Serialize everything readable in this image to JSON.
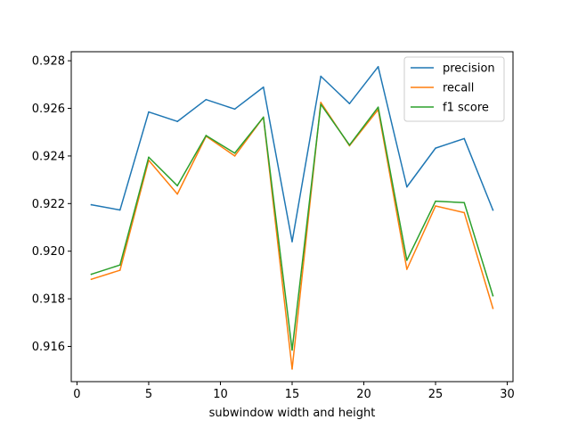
{
  "chart_data": {
    "type": "line",
    "title": "",
    "xlabel": "subwindow width and height",
    "ylabel": "",
    "xlim": [
      -0.4,
      30.4
    ],
    "ylim": [
      0.91452,
      0.92838
    ],
    "xticks": [
      0,
      5,
      10,
      15,
      20,
      25,
      30
    ],
    "xtick_labels": [
      "0",
      "5",
      "10",
      "15",
      "20",
      "25",
      "30"
    ],
    "yticks": [
      0.916,
      0.918,
      0.92,
      0.922,
      0.924,
      0.926,
      0.928
    ],
    "ytick_labels": [
      "0.916",
      "0.918",
      "0.920",
      "0.922",
      "0.924",
      "0.926",
      "0.928"
    ],
    "grid": false,
    "legend_position": "top-right",
    "x": [
      1,
      3,
      5,
      7,
      9,
      11,
      13,
      15,
      17,
      19,
      21,
      23,
      25,
      27,
      29
    ],
    "series": [
      {
        "name": "precision",
        "color": "#1f77b4",
        "values": [
          0.92195,
          0.92173,
          0.92585,
          0.92545,
          0.92637,
          0.92597,
          0.92689,
          0.9204,
          0.92735,
          0.9262,
          0.92775,
          0.9227,
          0.92433,
          0.92473,
          0.92173
        ]
      },
      {
        "name": "recall",
        "color": "#ff7f0e",
        "values": [
          0.91882,
          0.9192,
          0.92382,
          0.9224,
          0.92483,
          0.924,
          0.92563,
          0.91505,
          0.92625,
          0.92443,
          0.92595,
          0.91924,
          0.9219,
          0.92162,
          0.9176
        ]
      },
      {
        "name": "f1 score",
        "color": "#2ca02c",
        "values": [
          0.91903,
          0.91942,
          0.92395,
          0.92275,
          0.92486,
          0.92412,
          0.92563,
          0.91585,
          0.92617,
          0.92446,
          0.92605,
          0.91962,
          0.9221,
          0.92204,
          0.91813
        ]
      }
    ]
  }
}
